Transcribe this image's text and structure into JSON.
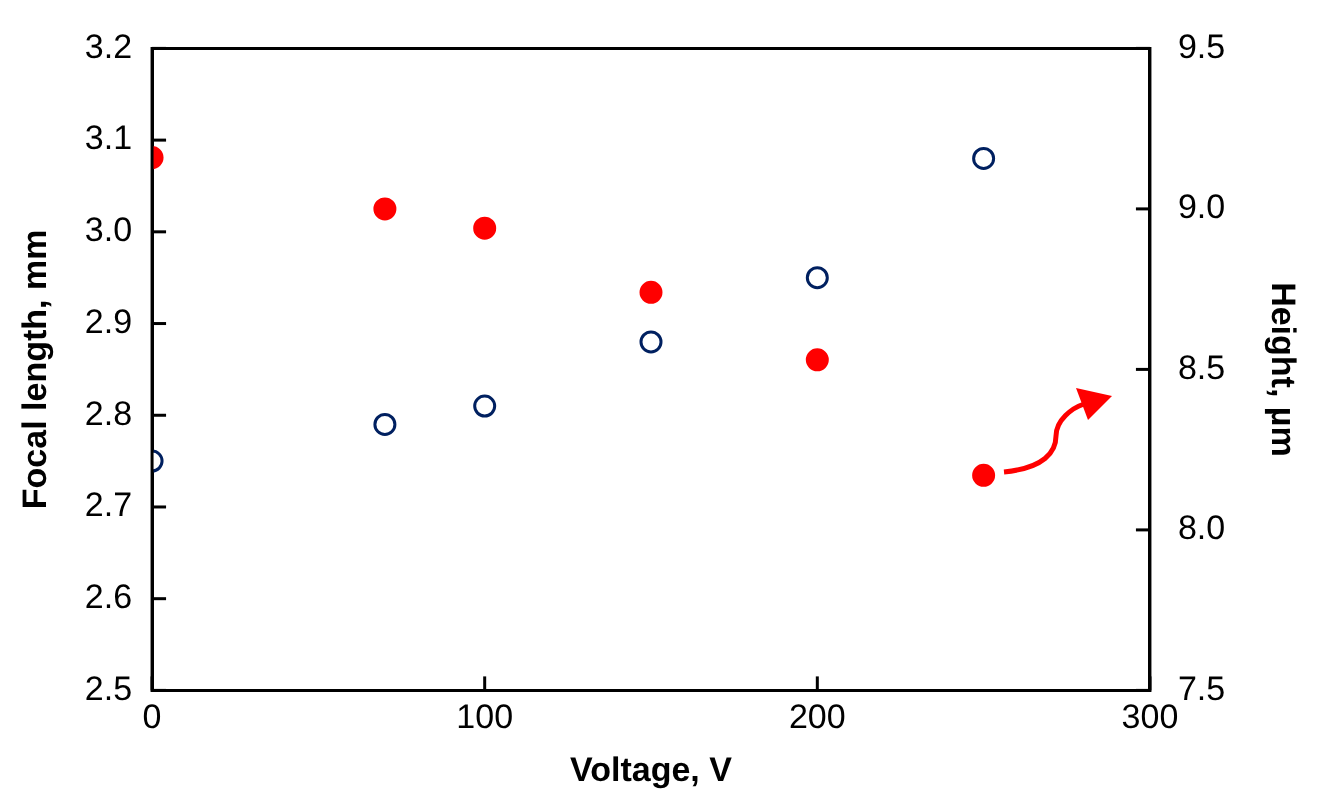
{
  "chart_data": {
    "type": "scatter",
    "xlabel": "Voltage, V",
    "ylabel": "Focal length, mm",
    "y2label": "Height, µm",
    "x": [
      0,
      70,
      100,
      150,
      200,
      250
    ],
    "series": [
      {
        "color": "#002060",
        "values": [
          2.75,
          2.79,
          2.81,
          2.88,
          2.95,
          3.08
        ]
      },
      {
        "color": "#ff0000",
        "axis": "y2",
        "values": [
          9.16,
          9.0,
          8.94,
          8.74,
          8.53,
          8.17
        ]
      }
    ],
    "xlim": [
      0,
      300
    ],
    "xticks": [
      0,
      100,
      200,
      300
    ],
    "ylim": [
      2.5,
      3.2
    ],
    "yticks": [
      2.5,
      2.6,
      2.7,
      2.8,
      2.9,
      {
        "value": 3,
        "label": "3.0"
      },
      3.1,
      3.2
    ],
    "y2lim": [
      7.5,
      9.5
    ],
    "y2ticks": [
      7.5,
      {
        "value": 8,
        "label": "8.0"
      },
      8.5,
      {
        "value": 9,
        "label": "9.0"
      },
      9.5
    ],
    "marker": "circle",
    "grid": false,
    "legend": false
  }
}
